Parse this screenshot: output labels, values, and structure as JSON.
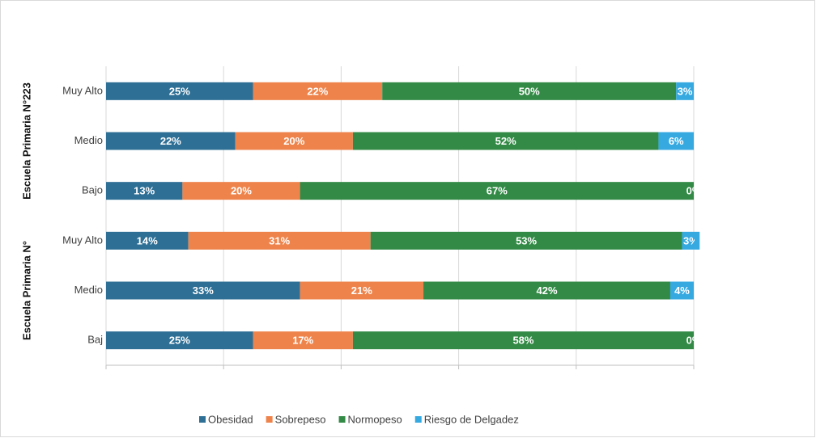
{
  "chart_data": {
    "type": "stacked_barh",
    "groups": [
      "Escuela Primaria N°223",
      "Escuela Primaria N°"
    ],
    "categories": [
      "Muy Alto",
      "Medio",
      "Bajo",
      "Muy Alto",
      "Medio",
      "Baj"
    ],
    "series": [
      {
        "name": "Obesidad",
        "color": "#2e6f95",
        "values": [
          25,
          22,
          13,
          14,
          33,
          25
        ],
        "value_labels": [
          "25%",
          "22%",
          "13%",
          "14%",
          "33%",
          "25%"
        ]
      },
      {
        "name": "Sobrepeso",
        "color": "#ee844c",
        "values": [
          22,
          20,
          20,
          31,
          21,
          17
        ],
        "value_labels": [
          "22%",
          "20%",
          "20%",
          "31%",
          "21%",
          "17%"
        ]
      },
      {
        "name": "Normopeso",
        "color": "#338a46",
        "values": [
          50,
          52,
          67,
          53,
          42,
          58
        ],
        "value_labels": [
          "50%",
          "52%",
          "67%",
          "53%",
          "42%",
          "58%"
        ]
      },
      {
        "name": "Riesgo de Delgadez",
        "color": "#36a9e1",
        "values": [
          3,
          6,
          0,
          3,
          4,
          0
        ],
        "value_labels": [
          "3%",
          "6%",
          "0%",
          "3%",
          "4%",
          "0%"
        ]
      }
    ],
    "xlim": [
      0,
      100
    ],
    "xticks": [
      0,
      20,
      40,
      60,
      80,
      100
    ],
    "grid": true,
    "legend": "bottom"
  }
}
